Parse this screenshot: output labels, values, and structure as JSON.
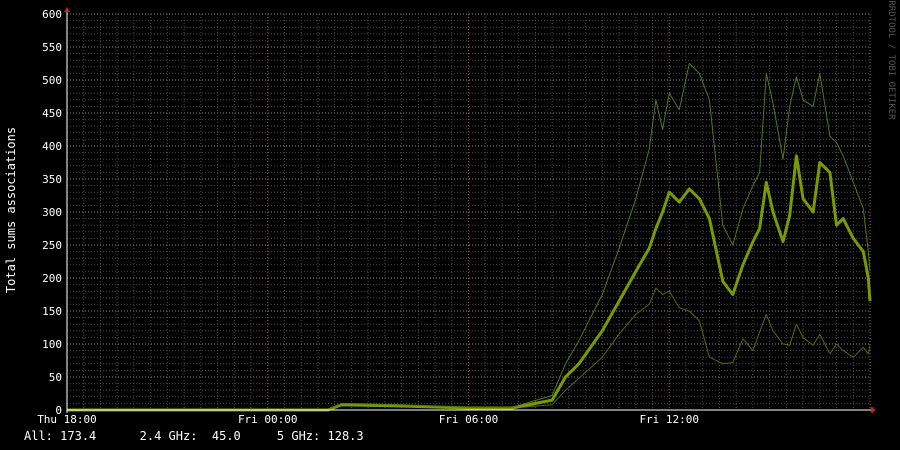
{
  "chart_data": {
    "type": "line",
    "title": "",
    "ylabel": "Total sums associations",
    "watermark": "RRDTOOL / TOBI OETIKER",
    "ylim": [
      0,
      600
    ],
    "yticks": [
      0,
      50,
      100,
      150,
      200,
      250,
      300,
      350,
      400,
      450,
      500,
      550,
      600
    ],
    "xlim_hours": [
      0,
      24
    ],
    "xticks": [
      {
        "label": "Thu 18:00",
        "hour": 0
      },
      {
        "label": "Fri 00:00",
        "hour": 6
      },
      {
        "label": "Fri 06:00",
        "hour": 12
      },
      {
        "label": "Fri 12:00",
        "hour": 18
      }
    ],
    "grid": true,
    "legend_position": "bottom-left",
    "series": [
      {
        "color": "#556b00",
        "width": 1,
        "x": [
          0,
          7.8,
          8.2,
          10,
          12,
          13.3,
          14.5,
          14.9,
          15.3,
          16.0,
          16.5,
          17.0,
          17.4,
          17.6,
          17.8,
          18.0,
          18.3,
          18.6,
          18.9,
          19.2,
          19.6,
          19.9,
          20.2,
          20.5,
          20.7,
          20.9,
          21.1,
          21.4,
          21.6,
          21.8,
          22.0,
          22.3,
          22.5,
          22.8,
          23.0,
          23.2,
          23.5,
          23.8,
          23.95,
          24.0
        ],
        "values": [
          0,
          0,
          8,
          6,
          3,
          3,
          8,
          30,
          48,
          80,
          115,
          145,
          160,
          185,
          175,
          180,
          155,
          150,
          135,
          80,
          70,
          72,
          108,
          90,
          118,
          145,
          120,
          100,
          98,
          130,
          110,
          98,
          115,
          85,
          100,
          90,
          80,
          95,
          85,
          98
        ]
      },
      {
        "color": "#7a9a01",
        "width": 3,
        "x": [
          0,
          7.8,
          8.2,
          10,
          12,
          13.3,
          14.5,
          14.9,
          15.3,
          16.0,
          16.5,
          17.0,
          17.4,
          17.6,
          17.8,
          18.0,
          18.3,
          18.6,
          18.9,
          19.2,
          19.6,
          19.9,
          20.2,
          20.5,
          20.7,
          20.9,
          21.1,
          21.4,
          21.6,
          21.8,
          22.0,
          22.3,
          22.5,
          22.8,
          23.0,
          23.2,
          23.5,
          23.8,
          23.95,
          24.0
        ],
        "values": [
          0,
          0,
          8,
          6,
          3,
          3,
          15,
          50,
          70,
          120,
          165,
          210,
          245,
          275,
          300,
          330,
          315,
          335,
          320,
          290,
          195,
          175,
          220,
          255,
          275,
          345,
          300,
          255,
          295,
          385,
          320,
          300,
          375,
          360,
          280,
          290,
          260,
          240,
          200,
          165
        ]
      },
      {
        "color": "#4a7a1a",
        "width": 1,
        "x": [
          0,
          7.8,
          8.2,
          10,
          12,
          13.3,
          14.5,
          14.9,
          15.3,
          16.0,
          16.5,
          17.0,
          17.4,
          17.6,
          17.8,
          18.0,
          18.3,
          18.6,
          18.9,
          19.2,
          19.6,
          19.9,
          20.2,
          20.5,
          20.7,
          20.9,
          21.1,
          21.4,
          21.6,
          21.8,
          22.0,
          22.3,
          22.5,
          22.8,
          23.0,
          23.2,
          23.5,
          23.8,
          23.95,
          24.0
        ],
        "values": [
          0,
          0,
          10,
          8,
          4,
          4,
          22,
          70,
          105,
          175,
          245,
          320,
          395,
          470,
          425,
          480,
          455,
          525,
          510,
          470,
          280,
          250,
          305,
          340,
          360,
          510,
          465,
          380,
          460,
          505,
          470,
          460,
          510,
          415,
          405,
          385,
          345,
          305,
          240,
          210
        ]
      }
    ]
  },
  "legend": {
    "all_label": "All:",
    "all_value": "173.4",
    "ghz24_label": "2.4 GHz:",
    "ghz24_value": "45.0",
    "ghz5_label": "5 GHz:",
    "ghz5_value": "128.3"
  }
}
